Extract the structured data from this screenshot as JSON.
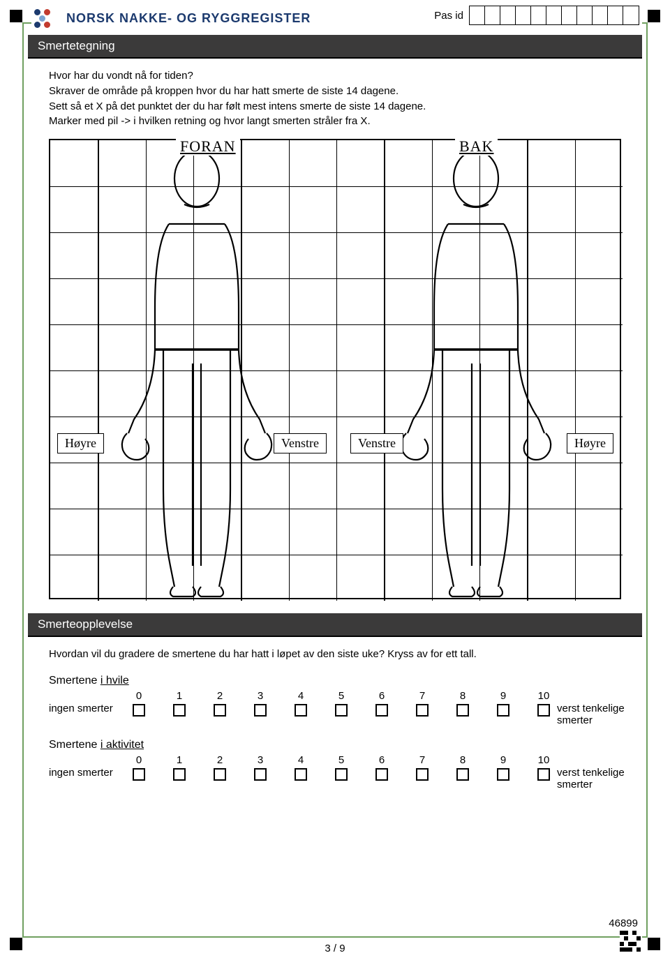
{
  "header": {
    "org_name": "NORSK NAKKE- OG RYGGREGISTER",
    "pasid_label": "Pas id",
    "pasid_cells": 11,
    "logo_colors": [
      "#1c3a6e",
      "#c23b2e",
      "#7aa3d0",
      "#1c3a6e",
      "#c23b2e"
    ]
  },
  "section1": {
    "title": "Smertetegning",
    "instructions": [
      "Hvor har du vondt nå for tiden?",
      "Skraver de område på kroppen hvor du har hatt smerte de siste 14 dagene.",
      "Sett så et X på det punktet der du har følt mest intens smerte de siste 14 dagene.",
      "Marker med pil -> i hvilken retning og hvor langt smerten stråler fra X."
    ]
  },
  "diagram": {
    "rows": 10,
    "cols": 12,
    "front_label": "FORAN",
    "back_label": "BAK",
    "side_labels": {
      "left_front": "Høyre",
      "right_front": "Venstre",
      "left_back": "Venstre",
      "right_back": "Høyre"
    },
    "grid_color": "#000000",
    "border_color": "#000000"
  },
  "section2": {
    "title": "Smerteopplevelse",
    "question": "Hvordan vil du gradere de smertene du har hatt i løpet av den siste uke? Kryss av for ett tall.",
    "scales": [
      {
        "title_pre": "Smertene ",
        "title_u": "i hvile",
        "left": "ingen smerter",
        "right": "verst tenkelige smerter",
        "min": 0,
        "max": 10
      },
      {
        "title_pre": "Smertene ",
        "title_u": "i aktivitet",
        "left": "ingen smerter",
        "right": "verst tenkelige smerter",
        "min": 0,
        "max": 10
      }
    ]
  },
  "footer": {
    "page": "3 / 9",
    "form_id": "46899"
  },
  "colors": {
    "frame_border": "#70a060",
    "section_bg": "#3b3a3a",
    "section_fg": "#ffffff"
  }
}
